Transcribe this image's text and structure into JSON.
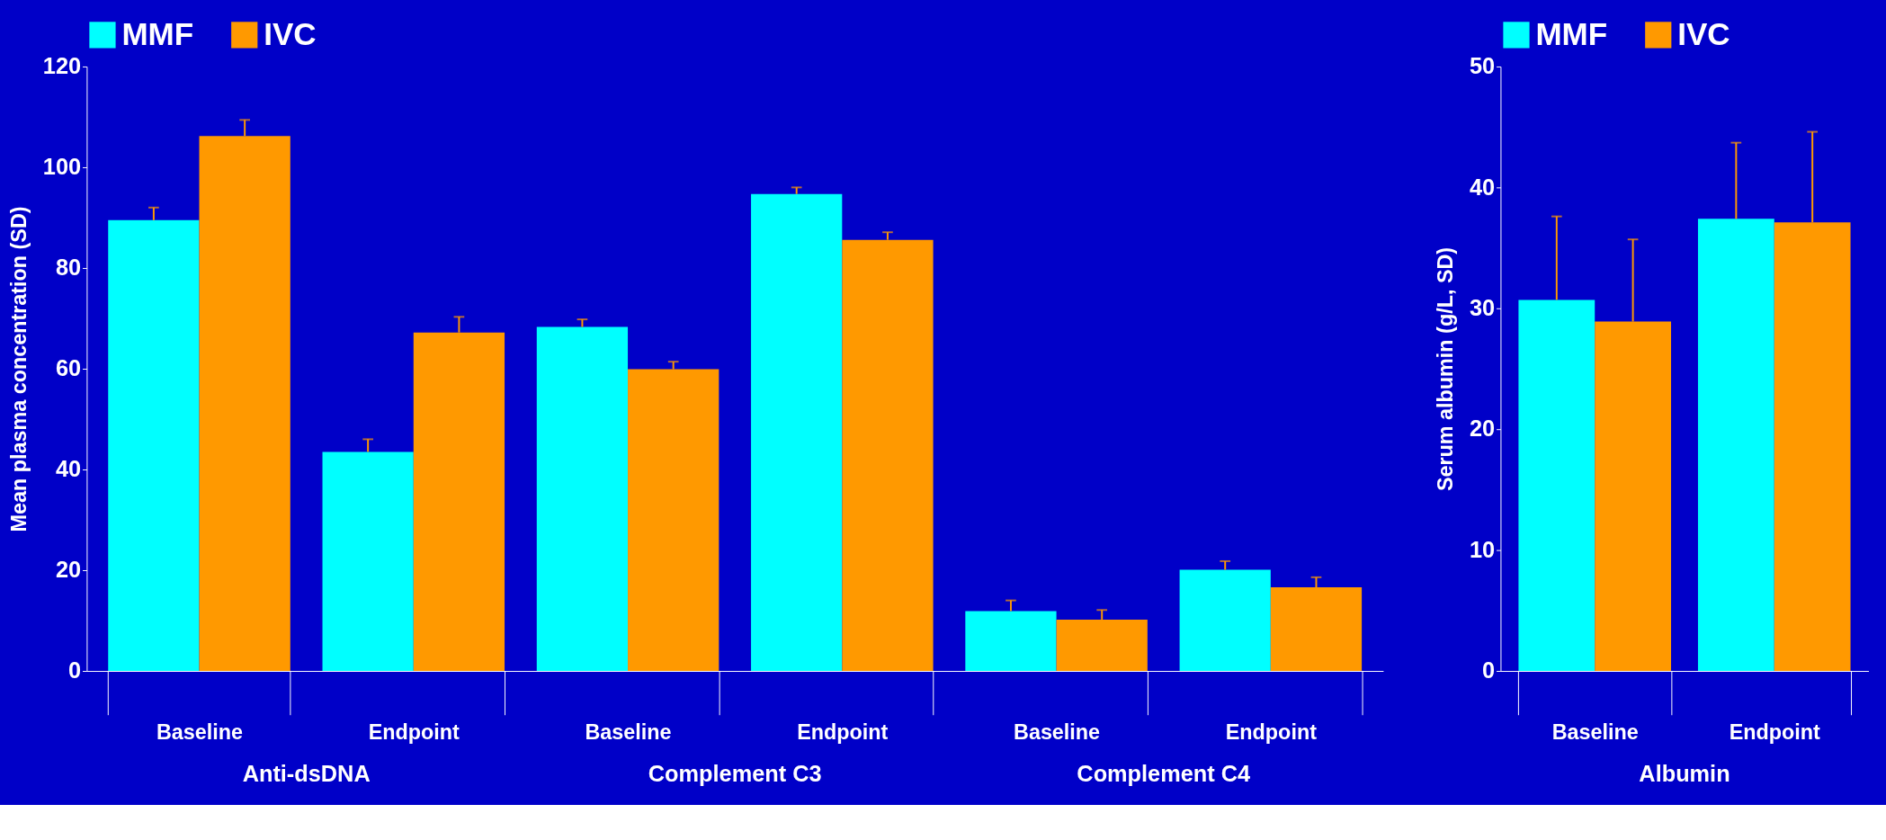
{
  "chart_data": [
    {
      "type": "bar",
      "ylabel": "Mean plasma concentration (SD)",
      "categories": [
        "Baseline",
        "Endpoint",
        "Baseline",
        "Endpoint",
        "Baseline",
        "Endpoint"
      ],
      "annotations": [
        {
          "text": "Anti-dsDNA"
        },
        {
          "text": "Complement C3"
        },
        {
          "text": "Complement C4"
        }
      ],
      "series": [
        {
          "name": "MMF",
          "color": "#00ffff",
          "values": [
            89.5,
            43.5,
            68.3,
            94.7,
            11.9,
            20.1
          ],
          "errors": [
            [
              89.5,
              92
            ],
            [
              43.5,
              46
            ],
            [
              68.3,
              69.8
            ],
            [
              94.7,
              96
            ],
            [
              11.9,
              14
            ],
            [
              20.1,
              21.8
            ]
          ]
        },
        {
          "name": "IVC",
          "color": "#ff9900",
          "values": [
            106.2,
            67.2,
            59.9,
            85.6,
            10.2,
            16.6
          ],
          "errors": [
            [
              106.2,
              109.4
            ],
            [
              67.2,
              70.3
            ],
            [
              59.9,
              61.4
            ],
            [
              85.6,
              87.1
            ],
            [
              10.2,
              12.1
            ],
            [
              16.6,
              18.6
            ]
          ]
        }
      ],
      "ylim": [
        0,
        120
      ],
      "yticks": [
        0,
        20,
        40,
        60,
        80,
        100,
        120
      ],
      "grid": false,
      "legend": "top"
    },
    {
      "type": "bar",
      "ylabel": "Serum albumin (g/L, SD)",
      "categories": [
        "Baseline",
        "Endpoint"
      ],
      "annotations": [
        {
          "text": "Albumin"
        }
      ],
      "series": [
        {
          "name": "MMF",
          "color": "#00ffff",
          "values": [
            30.7,
            37.4
          ],
          "errors": [
            [
              30.7,
              37.6
            ],
            [
              37.4,
              43.7
            ]
          ]
        },
        {
          "name": "IVC",
          "color": "#ff9900",
          "values": [
            28.9,
            37.1
          ],
          "errors": [
            [
              28.9,
              35.7
            ],
            [
              37.1,
              44.6
            ]
          ]
        }
      ],
      "ylim": [
        0,
        50
      ],
      "yticks": [
        0,
        10,
        20,
        30,
        40,
        50
      ],
      "grid": false,
      "legend": "top"
    }
  ]
}
